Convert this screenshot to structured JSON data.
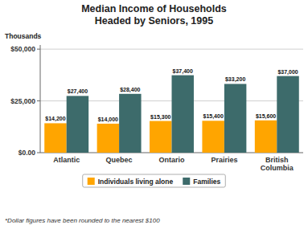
{
  "chart_data": {
    "type": "bar",
    "title": "Median Income of Households\nHeaded by Seniors, 1995",
    "ylabel": "Thousands",
    "footnote": "*Dollar figures have been rounded to the nearest $100",
    "categories": [
      "Atlantic",
      "Quebec",
      "Ontario",
      "Prairies",
      "British\nColumbia"
    ],
    "series": [
      {
        "name": "Individuals living alone",
        "color": "#FFA500",
        "values": [
          14200,
          14000,
          15300,
          15400,
          15600
        ],
        "value_labels": [
          "$14,200",
          "$14,000",
          "$15,300",
          "$15,400",
          "$15,600"
        ]
      },
      {
        "name": "Families",
        "color": "#3d6b6b",
        "values": [
          27400,
          28400,
          37400,
          33200,
          37000
        ],
        "value_labels": [
          "$27,400",
          "$28,400",
          "$37,400",
          "$33,200",
          "$37,000"
        ]
      }
    ],
    "ylim": [
      0,
      52000
    ],
    "yticks": [
      {
        "value": 0,
        "label": "$0.00"
      },
      {
        "value": 25000,
        "label": "$25,000"
      },
      {
        "value": 50000,
        "label": "$50,000"
      }
    ],
    "grid": true,
    "legend": "bottom",
    "data_labels": true
  }
}
